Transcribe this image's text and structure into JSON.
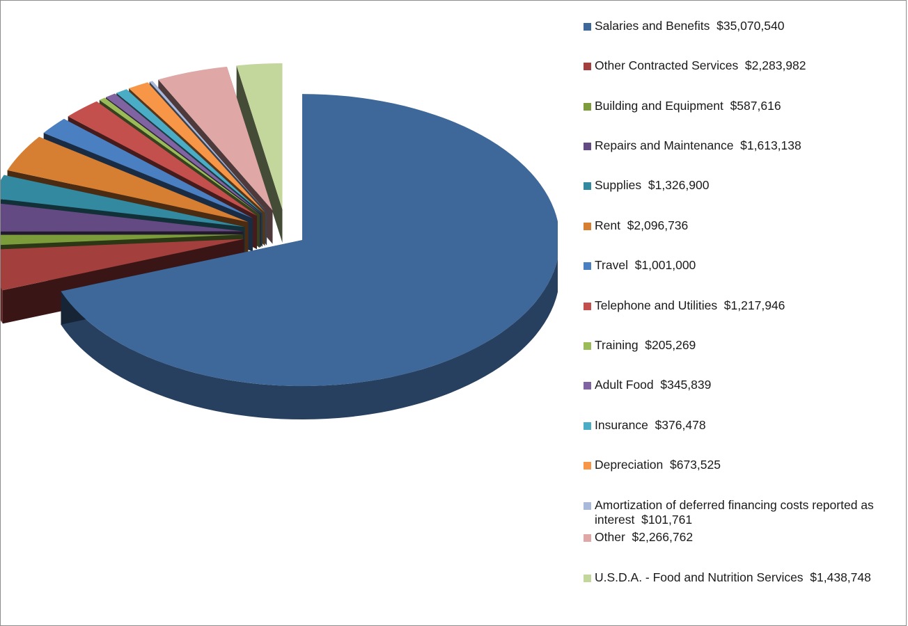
{
  "chart_data": {
    "type": "pie",
    "title": "",
    "legend_position": "right",
    "slices": [
      {
        "label": "Salaries and Benefits",
        "display": "$35,070,540",
        "value": 35070540,
        "color": "#3f689a"
      },
      {
        "label": "Other Contracted Services",
        "display": "$2,283,982",
        "value": 2283982,
        "color": "#a3403d"
      },
      {
        "label": "Building and Equipment",
        "display": "$587,616",
        "value": 587616,
        "color": "#7c9c3c"
      },
      {
        "label": "Repairs and Maintenance",
        "display": "$1,613,138",
        "value": 1613138,
        "color": "#644a82"
      },
      {
        "label": "Supplies",
        "display": "$1,326,900",
        "value": 1326900,
        "color": "#338aa0"
      },
      {
        "label": "Rent",
        "display": "$2,096,736",
        "value": 2096736,
        "color": "#d67f33"
      },
      {
        "label": "Travel",
        "display": "$1,001,000",
        "value": 1001000,
        "color": "#4a7fc1"
      },
      {
        "label": "Telephone and Utilities",
        "display": "$1,217,946",
        "value": 1217946,
        "color": "#c4504d"
      },
      {
        "label": "Training",
        "display": "$205,269",
        "value": 205269,
        "color": "#9bbb59"
      },
      {
        "label": "Adult Food",
        "display": "$345,839",
        "value": 345839,
        "color": "#8064a2"
      },
      {
        "label": "Insurance",
        "display": "$376,478",
        "value": 376478,
        "color": "#4bacc6"
      },
      {
        "label": "Depreciation",
        "display": "$673,525",
        "value": 673525,
        "color": "#f79646"
      },
      {
        "label": "Amortization of deferred financing costs reported as interest",
        "display": "$101,761",
        "value": 101761,
        "color": "#a9b9dc"
      },
      {
        "label": "Other",
        "display": "$2,266,762",
        "value": 2266762,
        "color": "#dfa7a6"
      },
      {
        "label": "U.S.D.A. - Food and Nutrition Services",
        "display": "$1,438,748",
        "value": 1438748,
        "color": "#c3d69b"
      }
    ]
  }
}
